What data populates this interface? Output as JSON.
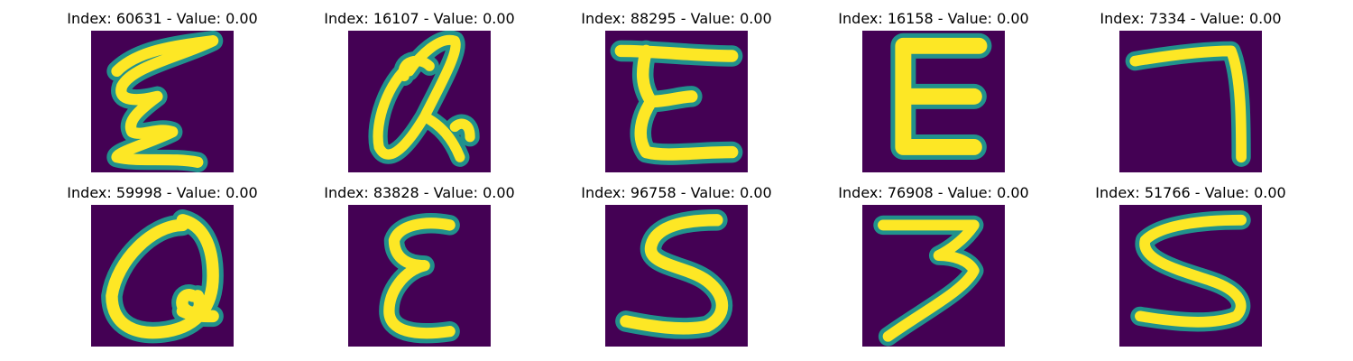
{
  "colors": {
    "background": "#440154",
    "stroke_core": "#fde725",
    "stroke_edge": "#21918c",
    "stroke_halo": "#3b528b"
  },
  "panels": [
    {
      "index_label": "Index: 60631 - Value: 0.00",
      "glyph": "E-script"
    },
    {
      "index_label": "Index: 16107 - Value: 0.00",
      "glyph": "Q-script"
    },
    {
      "index_label": "Index: 88295 - Value: 0.00",
      "glyph": "E-bar"
    },
    {
      "index_label": "Index: 16158 - Value: 0.00",
      "glyph": "E-block"
    },
    {
      "index_label": "Index: 7334 - Value: 0.00",
      "glyph": "7"
    },
    {
      "index_label": "Index: 59998 - Value: 0.00",
      "glyph": "Q-round"
    },
    {
      "index_label": "Index: 83828 - Value: 0.00",
      "glyph": "E-curly"
    },
    {
      "index_label": "Index: 96758 - Value: 0.00",
      "glyph": "S"
    },
    {
      "index_label": "Index: 76908 - Value: 0.00",
      "glyph": "3"
    },
    {
      "index_label": "Index: 51766 - Value: 0.00",
      "glyph": "S-wide"
    }
  ]
}
